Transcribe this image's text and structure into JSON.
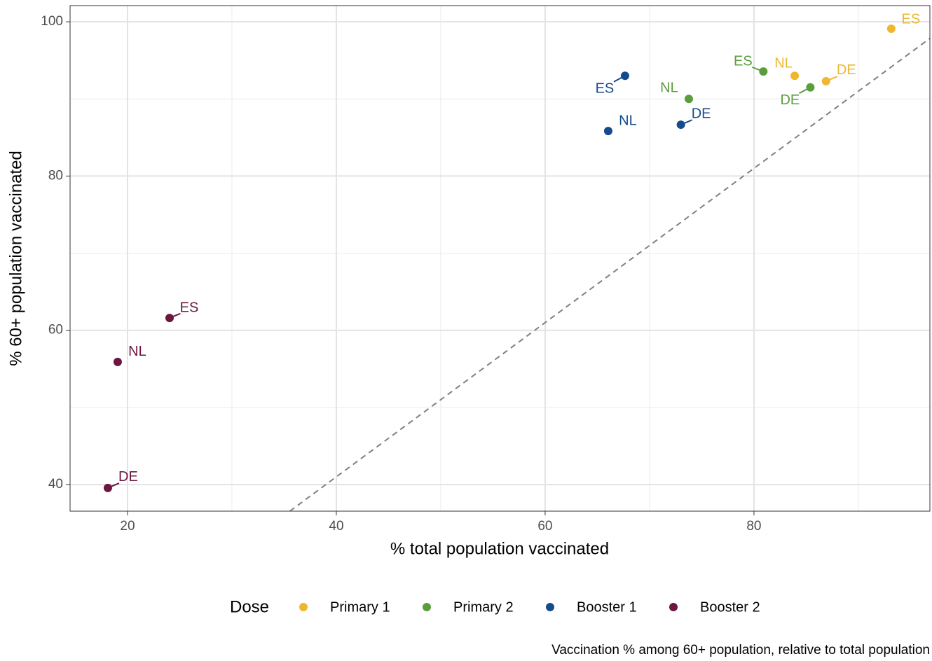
{
  "chart_data": {
    "type": "scatter",
    "x_label": "% total population vaccinated",
    "y_label": "% 60+ population vaccinated",
    "caption": "Vaccination % among 60+ population, relative to total population",
    "legend_title": "Dose",
    "legend": "bottom",
    "grid": true,
    "xlim": [
      14.5,
      96.85
    ],
    "ylim": [
      36.55,
      102.1
    ],
    "xticks": [
      20,
      40,
      60,
      80
    ],
    "yticks": [
      40,
      60,
      80,
      100
    ],
    "minor_xticks": [
      30,
      50,
      70,
      90
    ],
    "minor_yticks": [
      50,
      70,
      90
    ],
    "reference_line": {
      "slope": 1,
      "intercept": 1,
      "color": "#808080"
    },
    "series": [
      {
        "name": "Primary 1",
        "color": "#EFB730",
        "labels": [
          "ES",
          "NL",
          "DE"
        ],
        "x": [
          93.15,
          83.9,
          86.9
        ],
        "values": [
          99.1,
          93.0,
          92.3
        ]
      },
      {
        "name": "Primary 2",
        "color": "#5A9E3C",
        "labels": [
          "ES",
          "NL",
          "DE"
        ],
        "x": [
          80.9,
          73.76,
          85.4
        ],
        "values": [
          93.55,
          90.0,
          91.5
        ]
      },
      {
        "name": "Booster 1",
        "color": "#154B8C",
        "labels": [
          "ES",
          "NL",
          "DE"
        ],
        "x": [
          67.65,
          66.04,
          73.0
        ],
        "values": [
          93.0,
          85.84,
          86.66
        ]
      },
      {
        "name": "Booster 2",
        "color": "#6B1740",
        "labels": [
          "ES",
          "NL",
          "DE"
        ],
        "x": [
          24.03,
          19.06,
          18.12
        ],
        "values": [
          61.6,
          55.9,
          39.56
        ]
      }
    ]
  }
}
